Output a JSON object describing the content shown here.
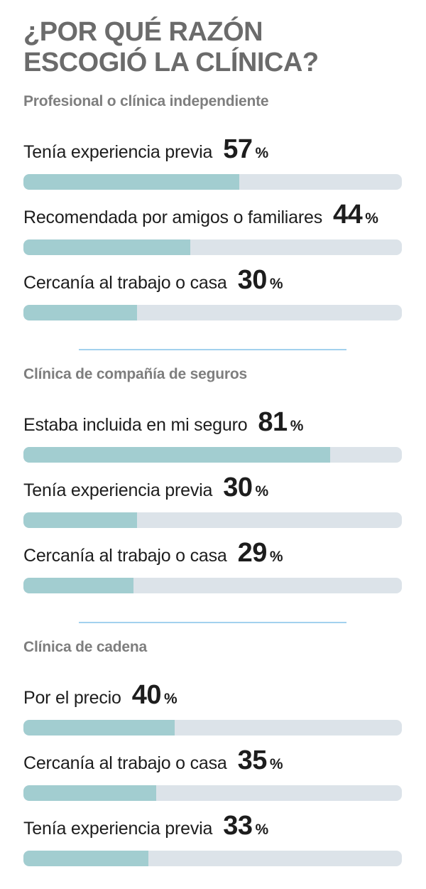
{
  "title_line1": "¿POR QUÉ RAZÓN",
  "title_line2": "ESCOGIÓ LA CLÍNICA?",
  "percent_sign": "%",
  "colors": {
    "bar_fill": "#a2cdd0",
    "bar_track": "#dce3e9",
    "separator": "#a2d1ee",
    "title": "#6b6b6b",
    "section_header": "#7e7e7e",
    "text": "#1d1d1d",
    "background": "#ffffff"
  },
  "chart_data": {
    "type": "bar",
    "orientation": "horizontal",
    "title": "¿Por qué razón escogió la clínica?",
    "unit": "%",
    "xlim": [
      0,
      100
    ],
    "value_labels_shown": true,
    "grid": false,
    "legend": false,
    "groups": [
      {
        "label": "Profesional o clínica independiente",
        "items": [
          {
            "label": "Tenía experiencia previa",
            "value": 57
          },
          {
            "label": "Recomendada por amigos o familiares",
            "value": 44
          },
          {
            "label": "Cercanía al trabajo o casa",
            "value": 30
          }
        ]
      },
      {
        "label": "Clínica de compañía de seguros",
        "items": [
          {
            "label": "Estaba incluida en mi seguro",
            "value": 81
          },
          {
            "label": "Tenía experiencia previa",
            "value": 30
          },
          {
            "label": "Cercanía al trabajo o casa",
            "value": 29
          }
        ]
      },
      {
        "label": "Clínica de cadena",
        "items": [
          {
            "label": "Por el precio",
            "value": 40
          },
          {
            "label": "Cercanía al trabajo o casa",
            "value": 35
          },
          {
            "label": "Tenía experiencia previa",
            "value": 33
          }
        ]
      }
    ]
  }
}
